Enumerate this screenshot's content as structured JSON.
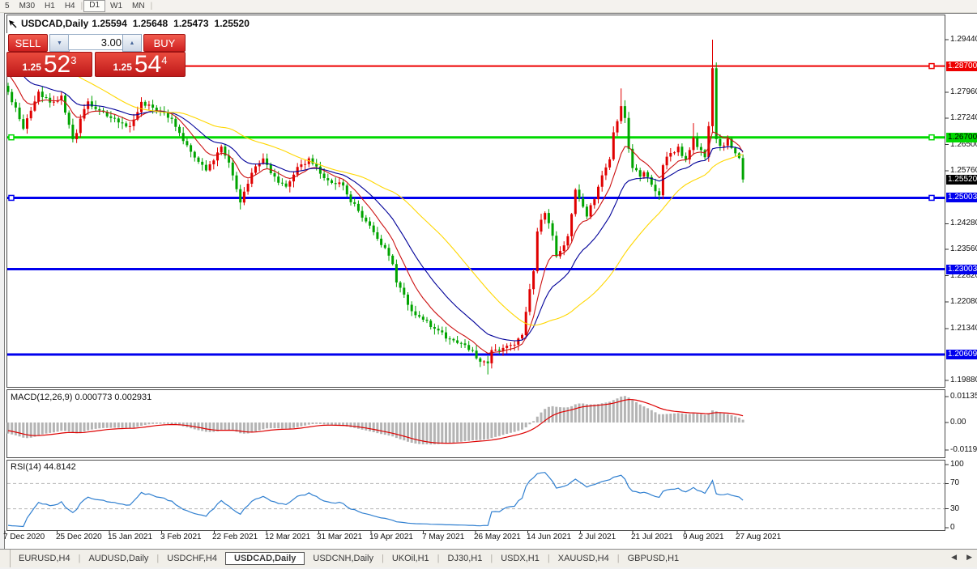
{
  "toolbar": {
    "timeframes": [
      {
        "label": "5",
        "active": false
      },
      {
        "label": "M30",
        "active": false
      },
      {
        "label": "H1",
        "active": false
      },
      {
        "label": "H4",
        "active": false
      },
      {
        "label": "D1",
        "active": true
      },
      {
        "label": "W1",
        "active": false
      },
      {
        "label": "MN",
        "active": false
      }
    ]
  },
  "title": {
    "symbol": "USDCAD,Daily",
    "open": "1.25594",
    "high": "1.25648",
    "low": "1.25473",
    "close": "1.25520"
  },
  "trade_panel": {
    "sell_label": "SELL",
    "buy_label": "BUY",
    "volume": "3.00",
    "sell_price": {
      "prefix": "1.25",
      "big": "52",
      "sup": "3"
    },
    "buy_price": {
      "prefix": "1.25",
      "big": "54",
      "sup": "4"
    }
  },
  "price_axis": {
    "ticks": [
      "1.29440",
      "1.27960",
      "1.27240",
      "1.26500",
      "1.25760",
      "1.24280",
      "1.23560",
      "1.22820",
      "1.22080",
      "1.21340",
      "1.19880"
    ],
    "current": {
      "label": "1.25520",
      "value": 1.2552
    }
  },
  "hlines": [
    {
      "value": 1.287,
      "label": "1.28700",
      "color": "#ee0000",
      "text_color": "#ffffff",
      "width": 2,
      "handles": true
    },
    {
      "value": 1.267,
      "label": "1.26700",
      "color": "#00d800",
      "text_color": "#000000",
      "width": 3,
      "handles": true
    },
    {
      "value": 1.25003,
      "label": "1.25003",
      "color": "#0000ee",
      "text_color": "#ffffff",
      "width": 3,
      "handles": true
    },
    {
      "value": 1.23003,
      "label": "1.23003",
      "color": "#0000ee",
      "text_color": "#ffffff",
      "width": 3,
      "handles": false
    },
    {
      "value": 1.20609,
      "label": "1.20609",
      "color": "#0000ee",
      "text_color": "#ffffff",
      "width": 3,
      "handles": false
    }
  ],
  "macd": {
    "label": "MACD(12,26,9) 0.000773 0.002931",
    "scale": [
      {
        "v": 0.01135,
        "label": "0.01135"
      },
      {
        "v": 0,
        "label": "0.00"
      },
      {
        "v": -0.0119,
        "label": "-0.01190"
      }
    ]
  },
  "rsi": {
    "label": "RSI(14) 44.8142",
    "scale": [
      {
        "v": 100,
        "label": "100"
      },
      {
        "v": 70,
        "label": "70"
      },
      {
        "v": 30,
        "label": "30"
      },
      {
        "v": 0,
        "label": "0"
      }
    ],
    "levels": [
      70,
      30
    ]
  },
  "date_axis": [
    "7 Dec 2020",
    "25 Dec 2020",
    "15 Jan 2021",
    "3 Feb 2021",
    "22 Feb 2021",
    "12 Mar 2021",
    "31 Mar 2021",
    "19 Apr 2021",
    "7 May 2021",
    "26 May 2021",
    "14 Jun 2021",
    "2 Jul 2021",
    "21 Jul 2021",
    "9 Aug 2021",
    "27 Aug 2021"
  ],
  "tabs": {
    "items": [
      "EURUSD,H4",
      "AUDUSD,Daily",
      "USDCHF,H4",
      "USDCAD,Daily",
      "USDCNH,Daily",
      "UKOil,H1",
      "DJ30,H1",
      "USDX,H1",
      "XAUUSD,H4",
      "GBPUSD,H1"
    ],
    "active": "USDCAD,Daily"
  },
  "chart_data": {
    "type": "candlestick",
    "symbol": "USDCAD",
    "timeframe": "Daily",
    "price_axis_range": [
      1.1988,
      1.2944
    ],
    "up_color": "#e00000",
    "down_color": "#00a400",
    "ma": [
      {
        "type": "ema",
        "period": 9,
        "color": "#cc1111"
      },
      {
        "type": "ema",
        "period": 20,
        "color": "#000099"
      },
      {
        "type": "sma",
        "period": 40,
        "color": "#ffd700"
      }
    ],
    "macd_colors": {
      "histogram": "#b4b4b4",
      "signal": "#dd0000"
    },
    "rsi_color": "#2f7fd0",
    "warmup_anchors": [
      [
        -50,
        1.305
      ],
      [
        -30,
        1.299
      ],
      [
        -12,
        1.298
      ],
      [
        -6,
        1.288
      ]
    ],
    "anchors": [
      [
        0,
        1.2795
      ],
      [
        4,
        1.27
      ],
      [
        8,
        1.28
      ],
      [
        11,
        1.2762
      ],
      [
        14,
        1.2784
      ],
      [
        17,
        1.266
      ],
      [
        21,
        1.2773
      ],
      [
        24,
        1.274
      ],
      [
        29,
        1.2717
      ],
      [
        32,
        1.2695
      ],
      [
        35,
        1.277
      ],
      [
        39,
        1.275
      ],
      [
        43,
        1.2717
      ],
      [
        46,
        1.2661
      ],
      [
        49,
        1.2616
      ],
      [
        52,
        1.2583
      ],
      [
        56,
        1.264
      ],
      [
        58,
        1.2605
      ],
      [
        61,
        1.2493
      ],
      [
        64,
        1.2571
      ],
      [
        67,
        1.2605
      ],
      [
        70,
        1.256
      ],
      [
        73,
        1.2527
      ],
      [
        76,
        1.2583
      ],
      [
        79,
        1.2605
      ],
      [
        82,
        1.2571
      ],
      [
        85,
        1.2538
      ],
      [
        87,
        1.2549
      ],
      [
        90,
        1.2493
      ],
      [
        93,
        1.2448
      ],
      [
        96,
        1.2403
      ],
      [
        99,
        1.2358
      ],
      [
        101,
        1.2314
      ],
      [
        102,
        1.2269
      ],
      [
        106,
        1.2179
      ],
      [
        109,
        1.2157
      ],
      [
        112,
        1.2134
      ],
      [
        115,
        1.2112
      ],
      [
        118,
        1.209
      ],
      [
        121,
        1.2078
      ],
      [
        124,
        1.2045
      ],
      [
        126,
        1.203
      ],
      [
        127,
        1.2067
      ],
      [
        130,
        1.2078
      ],
      [
        133,
        1.209
      ],
      [
        135,
        1.211
      ],
      [
        136,
        1.218
      ],
      [
        138,
        1.23
      ],
      [
        139,
        1.241
      ],
      [
        141,
        1.246
      ],
      [
        143,
        1.24
      ],
      [
        144,
        1.2336
      ],
      [
        147,
        1.239
      ],
      [
        149,
        1.2525
      ],
      [
        150,
        1.2493
      ],
      [
        152,
        1.2448
      ],
      [
        154,
        1.25
      ],
      [
        156,
        1.256
      ],
      [
        158,
        1.261
      ],
      [
        159,
        1.268
      ],
      [
        161,
        1.276
      ],
      [
        162,
        1.2722
      ],
      [
        163,
        1.264
      ],
      [
        164,
        1.2583
      ],
      [
        166,
        1.256
      ],
      [
        167,
        1.2571
      ],
      [
        169,
        1.2538
      ],
      [
        171,
        1.251
      ],
      [
        172,
        1.2594
      ],
      [
        174,
        1.2625
      ],
      [
        176,
        1.2639
      ],
      [
        178,
        1.2605
      ],
      [
        180,
        1.2672
      ],
      [
        181,
        1.264
      ],
      [
        183,
        1.2616
      ],
      [
        184,
        1.27
      ],
      [
        185,
        1.287
      ],
      [
        186,
        1.2667
      ],
      [
        187,
        1.264
      ],
      [
        188,
        1.265
      ],
      [
        189,
        1.2665
      ],
      [
        190,
        1.264
      ],
      [
        191,
        1.263
      ],
      [
        192,
        1.261
      ],
      [
        193,
        1.2552
      ]
    ],
    "wick_overrides": {
      "61": {
        "low": 1.2468
      },
      "126": {
        "low": 1.2005
      },
      "161": {
        "high": 1.2807
      },
      "180": {
        "high": 1.271
      },
      "185": {
        "high": 1.2944
      }
    },
    "last_close": 1.2552,
    "macd_current": [
      0.000773,
      0.002931
    ],
    "rsi_current": 44.8142
  }
}
